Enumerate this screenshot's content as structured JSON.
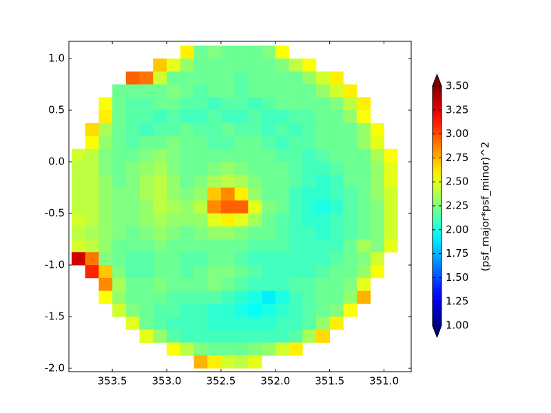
{
  "chart_data": {
    "type": "heatmap",
    "colormap": "jet",
    "colorbar_label": "(psf_major*psf_minor)^2",
    "clim": [
      1.0,
      3.5
    ],
    "cticks": [
      {
        "value": 1.0,
        "label": "1.00"
      },
      {
        "value": 1.25,
        "label": "1.25"
      },
      {
        "value": 1.5,
        "label": "1.50"
      },
      {
        "value": 1.75,
        "label": "1.75"
      },
      {
        "value": 2.0,
        "label": "2.00"
      },
      {
        "value": 2.25,
        "label": "2.25"
      },
      {
        "value": 2.5,
        "label": "2.50"
      },
      {
        "value": 2.75,
        "label": "2.75"
      },
      {
        "value": 3.0,
        "label": "3.00"
      },
      {
        "value": 3.25,
        "label": "3.25"
      },
      {
        "value": 3.5,
        "label": "3.50"
      }
    ],
    "xlim": [
      353.9,
      350.75
    ],
    "ylim": [
      -2.033,
      1.167
    ],
    "xticks": [
      353.5,
      {
        "value": 353.0,
        "label": "353.0"
      },
      352.5,
      {
        "value": 352.0,
        "label": "352.0"
      },
      351.5,
      {
        "value": 351.0,
        "label": "351.0"
      }
    ],
    "yticks": [
      {
        "value": 1.0,
        "label": "1.0"
      },
      0.5,
      {
        "value": 0.0,
        "label": "0.0"
      },
      -0.5,
      {
        "value": -1.0,
        "label": "-1.0"
      },
      -1.5,
      {
        "value": -2.0,
        "label": "-2.0"
      }
    ],
    "xedges": [
      353.875,
      353.75,
      353.625,
      353.5,
      353.375,
      353.25,
      353.125,
      353.0,
      352.875,
      352.75,
      352.625,
      352.5,
      352.375,
      352.25,
      352.125,
      352.0,
      351.875,
      351.75,
      351.625,
      351.5,
      351.375,
      351.25,
      351.125,
      351.0,
      350.875,
      350.75
    ],
    "yedges": [
      1.125,
      1.0,
      0.875,
      0.75,
      0.625,
      0.5,
      0.375,
      0.25,
      0.125,
      0.0,
      -0.125,
      -0.25,
      -0.375,
      -0.5,
      -0.625,
      -0.75,
      -0.875,
      -1.0,
      -1.125,
      -1.25,
      -1.375,
      -1.5,
      -1.625,
      -1.75,
      -1.875,
      -2.0
    ],
    "z": [
      [
        null,
        null,
        null,
        null,
        null,
        null,
        null,
        null,
        2.6,
        2.2,
        2.25,
        2.2,
        2.2,
        2.2,
        2.25,
        2.55,
        null,
        null,
        null,
        null,
        null,
        null,
        null,
        null,
        null
      ],
      [
        null,
        null,
        null,
        null,
        null,
        null,
        2.7,
        2.5,
        2.3,
        2.2,
        2.2,
        2.2,
        2.2,
        2.2,
        2.2,
        2.25,
        2.4,
        2.55,
        null,
        null,
        null,
        null,
        null,
        null,
        null
      ],
      [
        null,
        null,
        null,
        null,
        2.95,
        2.9,
        2.45,
        2.2,
        2.2,
        2.2,
        2.2,
        2.2,
        2.15,
        2.2,
        2.2,
        2.2,
        2.2,
        2.3,
        2.45,
        2.6,
        null,
        null,
        null,
        null,
        null
      ],
      [
        null,
        null,
        null,
        2.2,
        2.2,
        2.2,
        2.2,
        2.25,
        2.2,
        2.15,
        2.2,
        2.2,
        2.15,
        2.2,
        2.2,
        2.2,
        2.2,
        2.2,
        2.3,
        2.45,
        2.6,
        null,
        null,
        null,
        null
      ],
      [
        null,
        null,
        2.55,
        2.2,
        2.15,
        2.15,
        2.2,
        2.2,
        2.15,
        2.15,
        2.1,
        2.15,
        2.15,
        2.1,
        2.15,
        2.2,
        2.2,
        2.2,
        2.2,
        2.25,
        2.4,
        2.6,
        null,
        null,
        null
      ],
      [
        null,
        null,
        2.6,
        2.2,
        2.15,
        2.15,
        2.1,
        2.15,
        2.1,
        2.1,
        2.15,
        2.1,
        2.1,
        2.15,
        2.1,
        2.1,
        2.15,
        2.15,
        2.2,
        2.2,
        2.3,
        2.55,
        null,
        null,
        null
      ],
      [
        null,
        2.65,
        2.35,
        2.2,
        2.15,
        2.1,
        2.15,
        2.15,
        2.2,
        2.15,
        2.15,
        2.2,
        2.15,
        2.15,
        2.1,
        2.15,
        2.1,
        2.15,
        2.2,
        2.2,
        2.2,
        2.3,
        2.55,
        null,
        null
      ],
      [
        null,
        2.55,
        2.3,
        2.2,
        2.15,
        2.2,
        2.2,
        2.25,
        2.2,
        2.2,
        2.15,
        2.15,
        2.2,
        2.2,
        2.15,
        2.1,
        2.15,
        2.15,
        2.2,
        2.2,
        2.2,
        2.3,
        2.5,
        null,
        null
      ],
      [
        2.45,
        2.4,
        2.25,
        2.2,
        2.2,
        2.25,
        2.3,
        2.25,
        2.2,
        2.2,
        2.2,
        2.2,
        2.2,
        2.2,
        2.2,
        2.15,
        2.15,
        2.1,
        2.15,
        2.2,
        2.2,
        2.2,
        2.35,
        2.55,
        null
      ],
      [
        2.4,
        2.4,
        2.25,
        2.2,
        2.25,
        2.3,
        2.35,
        2.25,
        2.2,
        2.2,
        2.25,
        2.3,
        2.25,
        2.2,
        2.2,
        2.2,
        2.15,
        2.1,
        2.1,
        2.15,
        2.2,
        2.2,
        2.3,
        2.5,
        null
      ],
      [
        2.4,
        2.4,
        2.3,
        2.2,
        2.25,
        2.35,
        2.4,
        2.3,
        2.2,
        2.25,
        2.35,
        2.4,
        2.35,
        2.25,
        2.2,
        2.2,
        2.15,
        2.1,
        2.05,
        2.1,
        2.2,
        2.2,
        2.3,
        2.5,
        null
      ],
      [
        2.4,
        2.4,
        2.3,
        2.25,
        2.25,
        2.35,
        2.4,
        2.3,
        2.25,
        2.3,
        2.7,
        2.85,
        2.6,
        2.3,
        2.2,
        2.2,
        2.1,
        2.05,
        2.05,
        2.1,
        2.15,
        2.2,
        2.3,
        2.45,
        null
      ],
      [
        2.4,
        2.4,
        2.3,
        2.25,
        2.25,
        2.3,
        2.4,
        2.35,
        2.3,
        2.4,
        2.85,
        2.95,
        2.95,
        2.5,
        2.25,
        2.2,
        2.1,
        2.05,
        2.0,
        2.05,
        2.15,
        2.2,
        2.25,
        2.45,
        null
      ],
      [
        2.45,
        2.4,
        2.3,
        2.25,
        2.25,
        2.3,
        2.35,
        2.3,
        2.3,
        2.3,
        2.5,
        2.6,
        2.5,
        2.35,
        2.2,
        2.15,
        2.1,
        2.05,
        2.05,
        2.1,
        2.15,
        2.2,
        2.25,
        2.45,
        null
      ],
      [
        2.4,
        2.35,
        2.3,
        2.25,
        2.2,
        2.25,
        2.3,
        2.25,
        2.2,
        2.25,
        2.3,
        2.3,
        2.25,
        2.2,
        2.2,
        2.15,
        2.1,
        2.1,
        2.05,
        2.1,
        2.15,
        2.2,
        2.25,
        2.45,
        null
      ],
      [
        2.45,
        2.4,
        2.3,
        2.2,
        2.2,
        2.2,
        2.25,
        2.2,
        2.2,
        2.2,
        2.2,
        2.2,
        2.2,
        2.15,
        2.15,
        2.15,
        2.1,
        2.1,
        2.1,
        2.1,
        2.2,
        2.35,
        2.25,
        2.5,
        null
      ],
      [
        3.3,
        2.9,
        2.25,
        2.2,
        2.15,
        2.15,
        2.2,
        2.2,
        2.15,
        2.15,
        2.2,
        2.2,
        2.15,
        2.1,
        2.1,
        2.1,
        2.1,
        2.1,
        2.1,
        2.15,
        2.2,
        2.25,
        2.45,
        null,
        null
      ],
      [
        null,
        3.1,
        2.7,
        2.25,
        2.15,
        2.15,
        2.2,
        2.2,
        2.15,
        2.2,
        2.25,
        2.25,
        2.2,
        2.15,
        2.1,
        2.1,
        2.1,
        2.1,
        2.15,
        2.2,
        2.2,
        2.3,
        2.55,
        null,
        null
      ],
      [
        null,
        null,
        2.85,
        2.35,
        2.2,
        2.2,
        2.25,
        2.2,
        2.2,
        2.2,
        2.25,
        2.2,
        2.15,
        2.1,
        2.1,
        2.1,
        2.15,
        2.15,
        2.2,
        2.2,
        2.25,
        2.5,
        null,
        null,
        null
      ],
      [
        null,
        null,
        2.55,
        2.3,
        2.2,
        2.2,
        2.2,
        2.15,
        2.15,
        2.15,
        2.15,
        2.1,
        2.05,
        2.0,
        1.9,
        2.0,
        2.1,
        2.15,
        2.2,
        2.2,
        2.3,
        2.75,
        null,
        null,
        null
      ],
      [
        null,
        null,
        null,
        2.45,
        2.25,
        2.2,
        2.15,
        2.15,
        2.1,
        2.1,
        2.05,
        2.05,
        2.0,
        1.95,
        2.0,
        2.05,
        2.1,
        2.15,
        2.2,
        2.25,
        2.55,
        null,
        null,
        null,
        null
      ],
      [
        null,
        null,
        null,
        null,
        2.5,
        2.2,
        2.15,
        2.1,
        2.1,
        2.1,
        2.05,
        2.05,
        2.05,
        2.05,
        2.05,
        2.1,
        2.1,
        2.15,
        2.3,
        2.6,
        null,
        null,
        null,
        null,
        null
      ],
      [
        null,
        null,
        null,
        null,
        null,
        2.5,
        2.3,
        2.15,
        2.1,
        2.1,
        2.1,
        2.1,
        2.1,
        2.1,
        2.1,
        2.1,
        2.15,
        2.35,
        2.65,
        null,
        null,
        null,
        null,
        null,
        null
      ],
      [
        null,
        null,
        null,
        null,
        null,
        null,
        null,
        2.55,
        2.4,
        2.25,
        2.2,
        2.2,
        2.2,
        2.25,
        2.3,
        2.45,
        2.6,
        null,
        null,
        null,
        null,
        null,
        null,
        null,
        null
      ],
      [
        null,
        null,
        null,
        null,
        null,
        null,
        null,
        null,
        null,
        2.75,
        2.6,
        2.45,
        2.4,
        2.5,
        null,
        null,
        null,
        null,
        null,
        null,
        null,
        null,
        null,
        null,
        null
      ]
    ]
  }
}
